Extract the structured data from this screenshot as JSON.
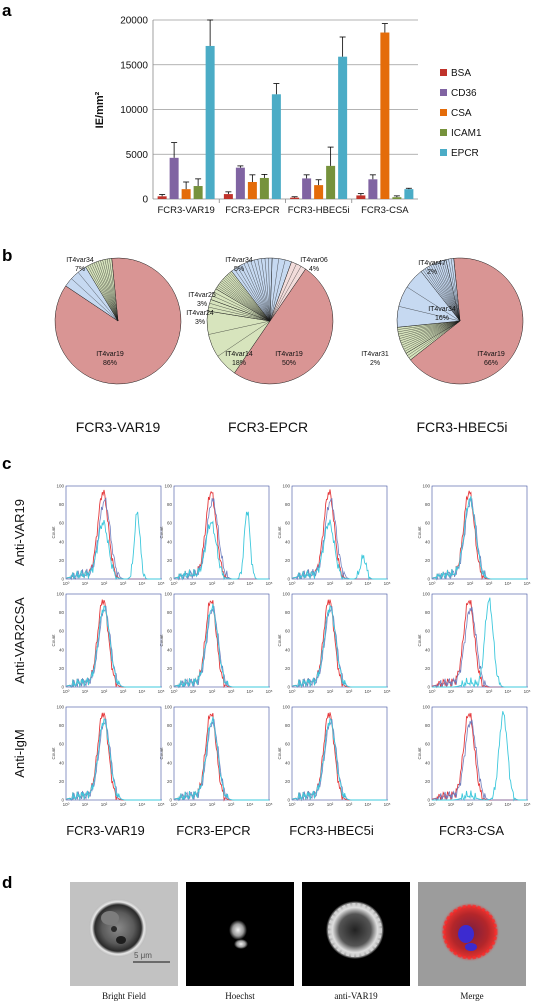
{
  "panels": {
    "a": "a",
    "b": "b",
    "c": "c",
    "d": "d"
  },
  "chart_data": [
    {
      "type": "bar",
      "ylabel": "IE/mm²",
      "ylim": [
        0,
        20000
      ],
      "yticks": [
        "0",
        "5000",
        "10000",
        "15000",
        "20000"
      ],
      "categories": [
        "FCR3-VAR19",
        "FCR3-EPCR",
        "FCR3-HBEC5i",
        "FCR3-CSA"
      ],
      "grid": true,
      "legend_position": "right",
      "series": [
        {
          "name": "BSA",
          "color": "#c0332b",
          "values": [
            300,
            550,
            150,
            400
          ],
          "errors": [
            200,
            250,
            100,
            200
          ]
        },
        {
          "name": "CD36",
          "color": "#8064a2",
          "values": [
            4600,
            3500,
            2300,
            2200
          ],
          "errors": [
            1700,
            200,
            400,
            500
          ]
        },
        {
          "name": "CSA",
          "color": "#e46c0a",
          "values": [
            1100,
            1900,
            1550,
            18600
          ],
          "errors": [
            800,
            800,
            600,
            1000
          ]
        },
        {
          "name": "ICAM1",
          "color": "#76923c",
          "values": [
            1450,
            2350,
            3700,
            200
          ],
          "errors": [
            800,
            400,
            2100,
            150
          ]
        },
        {
          "name": "EPCR",
          "color": "#4bacc6",
          "values": [
            17100,
            11700,
            15900,
            1100
          ],
          "errors": [
            2900,
            1200,
            2200,
            100
          ]
        }
      ]
    },
    {
      "type": "pie",
      "title": "FCR3-VAR19",
      "slices": [
        {
          "name": "IT4var19",
          "value": 86,
          "color": "#d99594",
          "label": "IT4var19",
          "pct": "86%"
        },
        {
          "name": "IT4var34",
          "value": 7,
          "color": "#c6d9f1",
          "label": "IT4var34",
          "pct": "7%"
        },
        {
          "name": "other",
          "value": 7,
          "color": "#d7e4bd",
          "label": "",
          "pct": ""
        }
      ]
    },
    {
      "type": "pie",
      "title": "FCR3-EPCR",
      "slices": [
        {
          "name": "IT4var19",
          "value": 50,
          "color": "#d99594",
          "label": "IT4var19",
          "pct": "50%"
        },
        {
          "name": "IT4var14",
          "value": 18,
          "color": "#d7e4bd",
          "label": "IT4var14",
          "pct": "18%"
        },
        {
          "name": "IT4var24",
          "value": 3,
          "color": "#d7e4bd",
          "label": "IT4var24",
          "pct": "3%"
        },
        {
          "name": "IT4var25",
          "value": 3,
          "color": "#d7e4bd",
          "label": "IT4var25",
          "pct": "3%"
        },
        {
          "name": "other-green",
          "value": 6,
          "color": "#d7e4bd",
          "label": "",
          "pct": ""
        },
        {
          "name": "other-blue",
          "value": 11,
          "color": "#c6d9f1",
          "label": "",
          "pct": ""
        },
        {
          "name": "IT4var34",
          "value": 5,
          "color": "#c6d9f1",
          "label": "IT4var34",
          "pct": "5%"
        },
        {
          "name": "IT4var06",
          "value": 4,
          "color": "#f2dcdb",
          "label": "IT4var06",
          "pct": "4%"
        }
      ]
    },
    {
      "type": "pie",
      "title": "FCR3-HBEC5i",
      "slices": [
        {
          "name": "IT4var19",
          "value": 66,
          "color": "#d99594",
          "label": "IT4var19",
          "pct": "66%"
        },
        {
          "name": "IT4var31",
          "value": 2,
          "color": "#d7e4bd",
          "label": "IT4var31",
          "pct": "2%"
        },
        {
          "name": "other-green",
          "value": 7,
          "color": "#d7e4bd",
          "label": "",
          "pct": ""
        },
        {
          "name": "IT4var34",
          "value": 16,
          "color": "#c6d9f1",
          "label": "IT4var34",
          "pct": "16%"
        },
        {
          "name": "other-blue",
          "value": 7,
          "color": "#c6d9f1",
          "label": "",
          "pct": ""
        },
        {
          "name": "IT4var47",
          "value": 2,
          "color": "#c6d9f1",
          "label": "IT4var47",
          "pct": "2%"
        }
      ]
    }
  ],
  "flow": {
    "rows": [
      "Anti-VAR19",
      "Anti-VAR2CSA",
      "Anti-IgM"
    ],
    "cols": [
      "FCR3-VAR19",
      "FCR3-EPCR",
      "FCR3-HBEC5i",
      "FCR3-CSA"
    ],
    "ylabel": "Count",
    "yticks": [
      "0",
      "20",
      "40",
      "60",
      "80",
      "100"
    ],
    "xticks": [
      "10⁰",
      "10¹",
      "10²",
      "10³",
      "10⁴",
      "10⁵"
    ],
    "colors": {
      "control": "#e5383b",
      "antibody": "#3ec8dc",
      "isotype": "#6f7fbf"
    },
    "positive": [
      [
        {
          "pos": 3.75,
          "frac": 0.6
        },
        {
          "pos": 3.85,
          "frac": 0.62
        },
        {
          "pos": 3.75,
          "frac": 0.2
        },
        {
          "pos": 0,
          "frac": 0
        }
      ],
      [
        {
          "pos": 0,
          "frac": 0
        },
        {
          "pos": 0,
          "frac": 0
        },
        {
          "pos": 0,
          "frac": 0
        },
        {
          "pos": 3.0,
          "frac": 1.0
        }
      ],
      [
        {
          "pos": 0,
          "frac": 0
        },
        {
          "pos": 0,
          "frac": 0
        },
        {
          "pos": 0,
          "frac": 0
        },
        {
          "pos": 3.75,
          "frac": 0.95
        }
      ]
    ]
  },
  "microscopy": {
    "captions": [
      "Bright Field",
      "Hoechst",
      "anti-VAR19",
      "Merge"
    ],
    "scale_bar": "5 μm"
  }
}
